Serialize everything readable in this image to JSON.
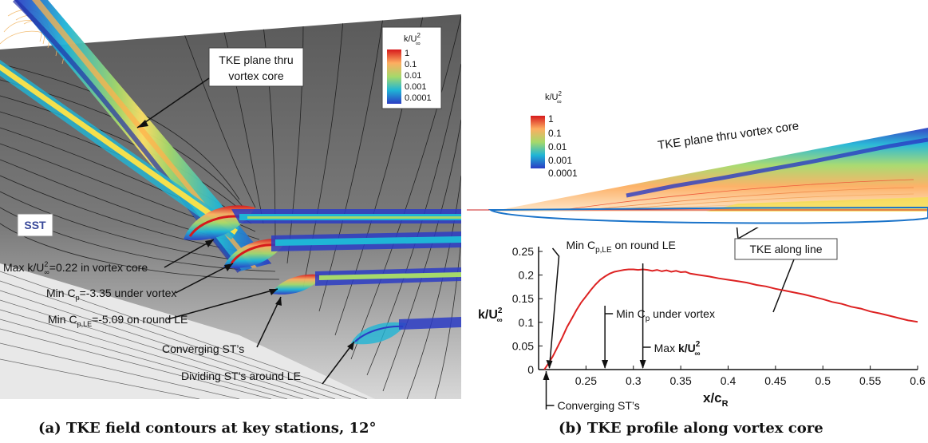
{
  "panel_a": {
    "legend_title_k": "k/U",
    "legend_title_exp": "2",
    "legend_title_sub": "∞",
    "legend_ticks": [
      "1",
      "0.1",
      "0.01",
      "0.001",
      "0.0001"
    ],
    "sst_badge": "SST",
    "annot_plane_l1": "TKE plane thru",
    "annot_plane_l2": "vortex core",
    "annot_max_pre": "Max k/U",
    "annot_max_exp": "2",
    "annot_max_sub": "∞",
    "annot_max_post": "=0.22 in vortex core",
    "annot_mincp_pre": "Min C",
    "annot_mincp_sub": "p",
    "annot_mincp_post": "=-3.35 under vortex",
    "annot_mincple_pre": "Min C",
    "annot_mincple_sub": "p,LE",
    "annot_mincple_post": "=-5.09 on round LE",
    "annot_conv": "Converging ST’s",
    "annot_div": "Dividing ST’s around LE",
    "caption": "(a) TKE field contours at key stations, 12°"
  },
  "panel_b": {
    "legend_title_k": "k/U",
    "legend_title_exp": "2",
    "legend_title_sub": "∞",
    "legend_ticks": [
      "1",
      "0.1",
      "0.01",
      "0.001",
      "0.0001"
    ],
    "plane_label": "TKE plane thru vortex core",
    "tke_line_label": "TKE along line",
    "caption": "(b) TKE profile along vortex core"
  },
  "colors": {
    "profile": "#dd2222",
    "surface_dark": "#555555",
    "airfoil_line": "#1a73c9",
    "sst": "#3a4a9a"
  },
  "chart_data": {
    "type": "line",
    "title": "",
    "xlabel_main": "x/c",
    "xlabel_sub": "R",
    "ylabel_main": "k/U",
    "ylabel_exp": "2",
    "ylabel_sub": "∞",
    "xlim": [
      0.2,
      0.6
    ],
    "ylim": [
      0,
      0.25
    ],
    "xticks": [
      "0.25",
      "0.3",
      "0.35",
      "0.4",
      "0.45",
      "0.5",
      "0.55",
      "0.6"
    ],
    "yticks": [
      "0",
      "0.05",
      "0.1",
      "0.15",
      "0.2",
      "0.25"
    ],
    "series": [
      {
        "x": [
          0.206,
          0.21,
          0.215,
          0.22,
          0.225,
          0.23,
          0.235,
          0.24,
          0.245,
          0.25,
          0.255,
          0.26,
          0.265,
          0.27,
          0.275,
          0.28,
          0.285,
          0.29,
          0.295,
          0.3,
          0.305,
          0.31,
          0.315,
          0.32,
          0.325,
          0.33,
          0.335,
          0.34,
          0.345,
          0.35,
          0.355,
          0.36,
          0.37,
          0.38,
          0.39,
          0.4,
          0.41,
          0.42,
          0.43,
          0.44,
          0.45,
          0.46,
          0.47,
          0.48,
          0.49,
          0.5,
          0.51,
          0.52,
          0.53,
          0.54,
          0.55,
          0.56,
          0.57,
          0.58,
          0.59,
          0.6
        ],
        "y": [
          0.0,
          0.012,
          0.028,
          0.048,
          0.068,
          0.09,
          0.108,
          0.126,
          0.142,
          0.155,
          0.168,
          0.18,
          0.19,
          0.197,
          0.203,
          0.207,
          0.209,
          0.211,
          0.212,
          0.212,
          0.211,
          0.212,
          0.211,
          0.209,
          0.211,
          0.208,
          0.21,
          0.207,
          0.209,
          0.206,
          0.207,
          0.203,
          0.2,
          0.197,
          0.193,
          0.19,
          0.187,
          0.184,
          0.179,
          0.176,
          0.171,
          0.167,
          0.163,
          0.159,
          0.154,
          0.149,
          0.143,
          0.139,
          0.133,
          0.129,
          0.123,
          0.119,
          0.114,
          0.109,
          0.104,
          0.101
        ]
      }
    ],
    "annotations": [
      {
        "label_pre": "Min C",
        "label_sub": "p,LE",
        "label_post": " on round LE",
        "x": 0.208
      },
      {
        "label_pre": "Min C",
        "label_sub": "p",
        "label_post": " under vortex",
        "x": 0.27
      },
      {
        "label_pre": "Max ",
        "label_bold": "k/U",
        "label_exp": "2",
        "label_sub": "∞",
        "x": 0.31
      },
      {
        "label_pre": "Converging ST’s",
        "x": 0.208
      }
    ]
  }
}
